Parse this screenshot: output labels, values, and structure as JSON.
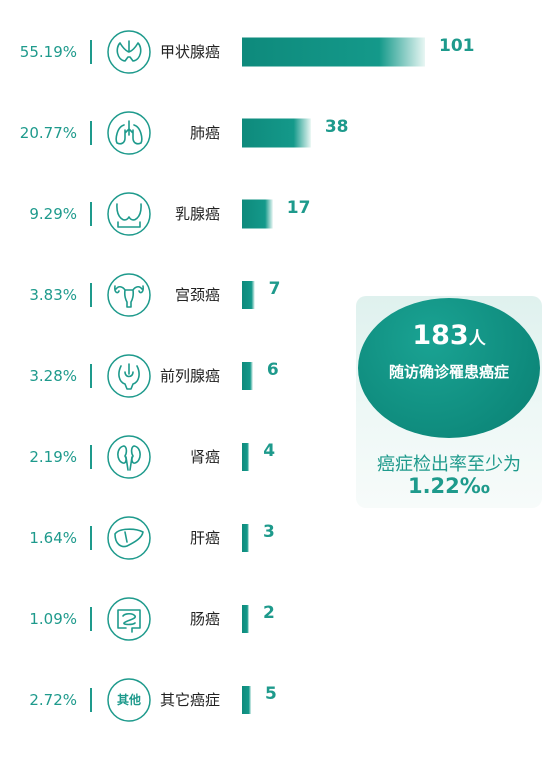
{
  "chart_data": {
    "type": "bar",
    "orientation": "horizontal",
    "categories": [
      "甲状腺癌",
      "肺癌",
      "乳腺癌",
      "宫颈癌",
      "前列腺癌",
      "肾癌",
      "肝癌",
      "肠癌",
      "其它癌症"
    ],
    "values": [
      101,
      38,
      17,
      7,
      6,
      4,
      3,
      2,
      5
    ],
    "percentages": [
      "55.19%",
      "20.77%",
      "9.29%",
      "3.83%",
      "3.28%",
      "2.19%",
      "1.64%",
      "1.09%",
      "2.72%"
    ],
    "icons": [
      "thyroid-icon",
      "lungs-icon",
      "breast-icon",
      "uterus-icon",
      "prostate-icon",
      "kidney-icon",
      "liver-icon",
      "intestine-icon",
      "other-icon"
    ],
    "other_icon_text": "其他",
    "xlim": [
      0,
      101
    ],
    "colors": {
      "bar": "#0e8a7c",
      "text": "#1e9a8c"
    }
  },
  "summary": {
    "count": "183",
    "count_unit": "人",
    "description": "随访确诊罹患癌症",
    "rate_label": "癌症检出率至少为",
    "rate_value": "1.22‰"
  }
}
